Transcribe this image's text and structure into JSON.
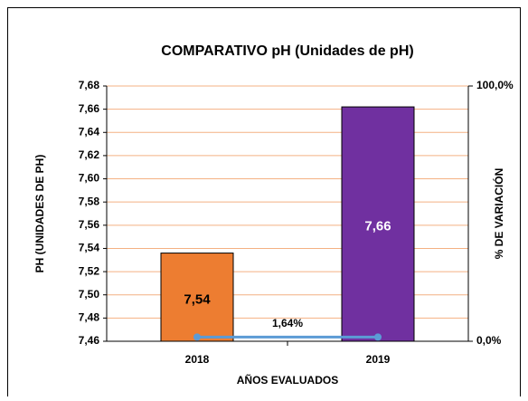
{
  "chart_data": {
    "type": "bar",
    "title": "COMPARATIVO pH (Unidades de pH)",
    "y_label": "PH (UNIDADES  DE PH)",
    "y2_label": "% DE VARIACIÓN",
    "x_label": "AÑOS EVALUADOS",
    "categories": [
      "2018",
      "2019"
    ],
    "series": [
      {
        "type": "bar",
        "colors": [
          "#ED7D31",
          "#7030A0"
        ],
        "label_colors": [
          "#000000",
          "#ffffff"
        ],
        "values": [
          7.536,
          7.662
        ],
        "value_labels": [
          "7,54",
          "7,66"
        ]
      },
      {
        "type": "line",
        "axis": "y2",
        "color": "#5B9BD5",
        "values": [
          1.64,
          1.64
        ]
      }
    ],
    "annotation": "1,64%",
    "ylim": [
      7.46,
      7.68
    ],
    "yticks": [
      {
        "value": 7.46,
        "label": "7,46"
      },
      {
        "value": 7.48,
        "label": "7,48"
      },
      {
        "value": 7.5,
        "label": "7,50"
      },
      {
        "value": 7.52,
        "label": "7,52"
      },
      {
        "value": 7.54,
        "label": "7,54"
      },
      {
        "value": 7.56,
        "label": "7,56"
      },
      {
        "value": 7.58,
        "label": "7,58"
      },
      {
        "value": 7.6,
        "label": "7,60"
      },
      {
        "value": 7.62,
        "label": "7,62"
      },
      {
        "value": 7.64,
        "label": "7,64"
      },
      {
        "value": 7.66,
        "label": "7,66"
      },
      {
        "value": 7.68,
        "label": "7,68"
      }
    ],
    "y2lim": [
      0,
      100
    ],
    "y2ticks": [
      {
        "value": 0,
        "label": "0,0%"
      },
      {
        "value": 100,
        "label": "100,0%"
      }
    ],
    "grid": true,
    "grid_color": "#F4B183"
  }
}
